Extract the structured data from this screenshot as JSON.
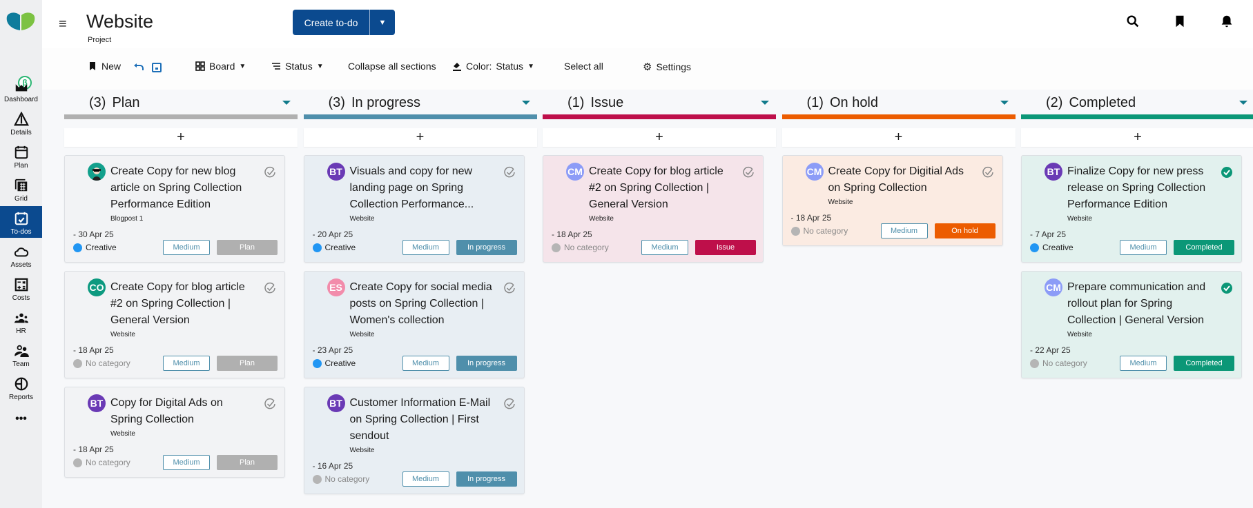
{
  "sidebar": {
    "items": [
      {
        "label": "Dashboard",
        "icon": "dashboard-icon",
        "active": false
      },
      {
        "label": "Details",
        "icon": "warning-triangle-icon",
        "active": false
      },
      {
        "label": "Plan",
        "icon": "calendar-icon",
        "active": false
      },
      {
        "label": "Grid",
        "icon": "grid-icon",
        "active": false
      },
      {
        "label": "To-dos",
        "icon": "calendar-check-icon",
        "active": true
      },
      {
        "label": "Assets",
        "icon": "cloud-icon",
        "active": false
      },
      {
        "label": "Costs",
        "icon": "calculator-icon",
        "active": false
      },
      {
        "label": "HR",
        "icon": "group-icon",
        "active": false
      },
      {
        "label": "Team",
        "icon": "team-icon",
        "active": false
      },
      {
        "label": "Reports",
        "icon": "pie-chart-icon",
        "active": false
      }
    ],
    "more": "•••",
    "beta": "β"
  },
  "header": {
    "title": "Website",
    "subtitle": "Project",
    "create_label": "Create to-do",
    "menu": "≡"
  },
  "toolbar": {
    "new": "New",
    "board": "Board",
    "status": "Status",
    "collapse": "Collapse all sections",
    "color_label": "Color:",
    "color_value": "Status",
    "select_all": "Select all",
    "settings": "Settings"
  },
  "colors": {
    "accent": "#0b4a8f",
    "priority": "#4f8fab"
  },
  "columns": [
    {
      "count": "(3)",
      "name": "Plan",
      "color": "#b0b0b0",
      "card_bg": "#f2f3f5",
      "add": "+",
      "cards": [
        {
          "avatar": "",
          "avatar_color": "#12a08c",
          "title": "Create Copy for new blog article on Spring Collection Performance Edition",
          "tag": "Blogpost 1",
          "date": "- 30 Apr 25",
          "category": "Creative",
          "category_color": "#2196f3",
          "priority": "Medium",
          "status": "Plan",
          "done": false
        },
        {
          "avatar": "CO",
          "avatar_color": "#0d9a80",
          "title": "Create Copy for blog article #2 on Spring Collection | General Version",
          "tag": "Website",
          "date": "- 18 Apr 25",
          "category": "No category",
          "category_color": "#b5b5b5",
          "priority": "Medium",
          "status": "Plan",
          "done": false
        },
        {
          "avatar": "BT",
          "avatar_color": "#6a3ab5",
          "title": "Copy for Digital Ads on Spring Collection",
          "tag": "Website",
          "date": "- 18 Apr 25",
          "category": "No category",
          "category_color": "#b5b5b5",
          "priority": "Medium",
          "status": "Plan",
          "done": false
        }
      ]
    },
    {
      "count": "(3)",
      "name": "In progress",
      "color": "#4f8fab",
      "card_bg": "#e8eef3",
      "add": "+",
      "cards": [
        {
          "avatar": "BT",
          "avatar_color": "#6a3ab5",
          "title": "Visuals and copy for new landing page on Spring Collection Performance...",
          "tag": "Website",
          "date": "- 20 Apr 25",
          "category": "Creative",
          "category_color": "#2196f3",
          "priority": "Medium",
          "status": "In progress",
          "done": false
        },
        {
          "avatar": "ES",
          "avatar_color": "#f28cab",
          "title": "Create Copy for social media posts on Spring Collection | Women's collection",
          "tag": "Website",
          "date": "- 23 Apr 25",
          "category": "Creative",
          "category_color": "#2196f3",
          "priority": "Medium",
          "status": "In progress",
          "done": false
        },
        {
          "avatar": "BT",
          "avatar_color": "#6a3ab5",
          "title": "Customer Information E-Mail on Spring Collection | First sendout",
          "tag": "Website",
          "date": "- 16 Apr 25",
          "category": "No category",
          "category_color": "#b5b5b5",
          "priority": "Medium",
          "status": "In progress",
          "done": false
        }
      ]
    },
    {
      "count": "(1)",
      "name": "Issue",
      "color": "#be0f4a",
      "card_bg": "#f5e4ea",
      "add": "+",
      "cards": [
        {
          "avatar": "CM",
          "avatar_color": "#8c9cf7",
          "title": "Create Copy for blog article #2 on Spring Collection | General Version",
          "tag": "Website",
          "date": "- 18 Apr 25",
          "category": "No category",
          "category_color": "#b5b5b5",
          "priority": "Medium",
          "status": "Issue",
          "done": false
        }
      ]
    },
    {
      "count": "(1)",
      "name": "On hold",
      "color": "#ec5c00",
      "card_bg": "#fbebe2",
      "add": "+",
      "cards": [
        {
          "avatar": "CM",
          "avatar_color": "#8c9cf7",
          "title": "Create Copy for Digitial Ads on Spring Collection",
          "tag": "Website",
          "date": "- 18 Apr 25",
          "category": "No category",
          "category_color": "#b5b5b5",
          "priority": "Medium",
          "status": "On hold",
          "done": false
        }
      ]
    },
    {
      "count": "(2)",
      "name": "Completed",
      "color": "#0b9777",
      "card_bg": "#e2f1ee",
      "add": "+",
      "cards": [
        {
          "avatar": "BT",
          "avatar_color": "#6a3ab5",
          "title": "Finalize Copy for new press release on Spring Collection Performance Edition",
          "tag": "Website",
          "date": "- 7 Apr 25",
          "category": "Creative",
          "category_color": "#2196f3",
          "priority": "Medium",
          "status": "Completed",
          "done": true
        },
        {
          "avatar": "CM",
          "avatar_color": "#8c9cf7",
          "title": "Prepare communication and rollout plan for Spring Collection | General Version",
          "tag": "Website",
          "date": "- 22 Apr 25",
          "category": "No category",
          "category_color": "#b5b5b5",
          "priority": "Medium",
          "status": "Completed",
          "done": true
        }
      ]
    }
  ]
}
